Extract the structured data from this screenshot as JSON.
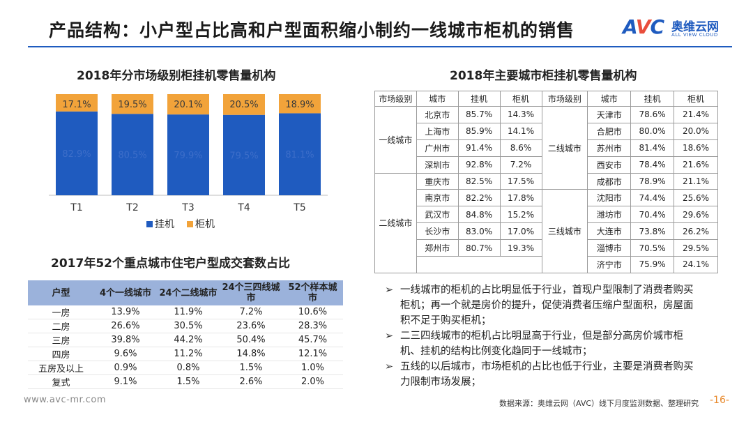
{
  "header": {
    "title": "产品结构：小户型占比高和户型面积缩小制约一线城市柜机的销售",
    "logo_mark_a": "A",
    "logo_mark_v": "V",
    "logo_mark_c": "C",
    "logo_cn": "奥维云网",
    "logo_en": "ALL VIEW CLOUD"
  },
  "chart_section": {
    "title": "2018年分市场级别柜挂机零售量机构"
  },
  "chart_data": {
    "type": "bar",
    "stacked": true,
    "title": "2018年分市场级别柜挂机零售量机构",
    "categories": [
      "T1",
      "T2",
      "T3",
      "T4",
      "T5"
    ],
    "series": [
      {
        "name": "挂机",
        "color": "#1f5bbf",
        "values": [
          82.9,
          80.5,
          79.9,
          79.5,
          81.1
        ],
        "labels": [
          "82.9%",
          "80.5%",
          "79.9%",
          "79.5%",
          "81.1%"
        ]
      },
      {
        "name": "柜机",
        "color": "#f2a33a",
        "values": [
          17.1,
          19.5,
          20.1,
          20.5,
          18.9
        ],
        "labels": [
          "17.1%",
          "19.5%",
          "20.1%",
          "20.5%",
          "18.9%"
        ]
      }
    ],
    "ylim": [
      0,
      100
    ],
    "legend": "bottom"
  },
  "housing": {
    "title": "2017年52个重点城市住宅户型成交套数占比",
    "headers": [
      "户型",
      "4个一线城市",
      "24个二线城市",
      "24个三四线城市",
      "52个样本城市"
    ],
    "rows": [
      [
        "一房",
        "13.9%",
        "11.9%",
        "7.2%",
        "10.6%"
      ],
      [
        "二房",
        "26.6%",
        "30.5%",
        "23.6%",
        "28.3%"
      ],
      [
        "三房",
        "39.8%",
        "44.2%",
        "50.4%",
        "45.7%"
      ],
      [
        "四房",
        "9.6%",
        "11.2%",
        "14.8%",
        "12.1%"
      ],
      [
        "五房及以上",
        "0.9%",
        "0.8%",
        "1.5%",
        "1.0%"
      ],
      [
        "复式",
        "9.1%",
        "1.5%",
        "2.6%",
        "2.0%"
      ]
    ]
  },
  "city": {
    "title": "2018年主要城市柜挂机零售量机构",
    "headers": [
      "市场级别",
      "城市",
      "挂机",
      "柜机",
      "市场级别",
      "城市",
      "挂机",
      "柜机"
    ],
    "left_groups": [
      "一线城市",
      "二线城市"
    ],
    "right_groups": [
      "二线城市",
      "三线城市"
    ],
    "left_rows": [
      [
        "北京市",
        "85.7%",
        "14.3%"
      ],
      [
        "上海市",
        "85.9%",
        "14.1%"
      ],
      [
        "广州市",
        "91.4%",
        "8.6%"
      ],
      [
        "深圳市",
        "92.8%",
        "7.2%"
      ],
      [
        "重庆市",
        "82.5%",
        "17.5%"
      ],
      [
        "南京市",
        "82.2%",
        "17.8%"
      ],
      [
        "武汉市",
        "84.8%",
        "15.2%"
      ],
      [
        "长沙市",
        "83.0%",
        "17.0%"
      ],
      [
        "郑州市",
        "80.7%",
        "19.3%"
      ]
    ],
    "right_rows": [
      [
        "天津市",
        "78.6%",
        "21.4%"
      ],
      [
        "合肥市",
        "80.0%",
        "20.0%"
      ],
      [
        "苏州市",
        "81.4%",
        "18.6%"
      ],
      [
        "西安市",
        "78.4%",
        "21.6%"
      ],
      [
        "成都市",
        "78.9%",
        "21.1%"
      ],
      [
        "沈阳市",
        "74.4%",
        "25.6%"
      ],
      [
        "潍坊市",
        "70.4%",
        "29.6%"
      ],
      [
        "大连市",
        "73.8%",
        "26.2%"
      ],
      [
        "淄博市",
        "70.5%",
        "29.5%"
      ],
      [
        "济宁市",
        "75.9%",
        "24.1%"
      ]
    ]
  },
  "bullets": {
    "marker": "➢",
    "items": [
      "一线城市的柜机的占比明显低于行业，首现户型限制了消费者购买柜机；再一个就是房价的提升，促使消费者压缩户型面积，房屋面积不足于购买柜机；",
      "二三四线城市的柜机占比明显高于行业，但是部分高房价城市柜机、挂机的结构比例变化趋同于一线城市；",
      "五线的以后城市，市场柜机的占比也低于行业，主要是消费者购买力限制市场发展；"
    ]
  },
  "footer": {
    "url": "www.avc-mr.com",
    "source": "数据来源：奥维云网（AVC）线下月度监测数据、整理研究",
    "page": "-16-"
  }
}
